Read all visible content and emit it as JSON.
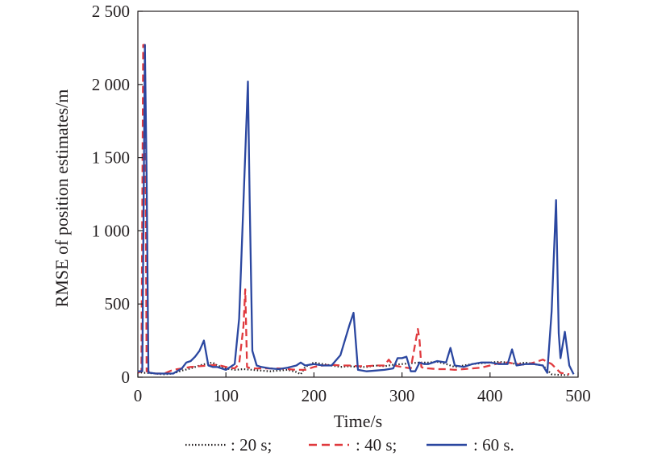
{
  "chart_data": {
    "type": "line",
    "title": "",
    "xlabel": "Time/s",
    "ylabel": "RMSE of position estimates/m",
    "xlim": [
      0,
      500
    ],
    "ylim": [
      0,
      2500
    ],
    "xticks": [
      0,
      100,
      200,
      300,
      400,
      500
    ],
    "yticks": [
      0,
      500,
      1000,
      1500,
      2000,
      2500
    ],
    "xtick_labels": [
      "0",
      "100",
      "200",
      "300",
      "400",
      "500"
    ],
    "ytick_labels": [
      "0",
      "500",
      "1 000",
      "1 500",
      "2 000",
      "2 500"
    ],
    "grid": false,
    "legend_position": "bottom",
    "series": [
      {
        "name": ": 20 s;",
        "color": "#231f20",
        "style": "dotted",
        "x": [
          0,
          5,
          10,
          20,
          30,
          40,
          50,
          60,
          70,
          80,
          85,
          90,
          100,
          110,
          120,
          130,
          140,
          150,
          160,
          170,
          180,
          185,
          190,
          200,
          210,
          220,
          230,
          240,
          250,
          260,
          270,
          280,
          290,
          300,
          310,
          320,
          330,
          340,
          350,
          360,
          370,
          380,
          390,
          400,
          410,
          420,
          430,
          440,
          450,
          460,
          470,
          480,
          490
        ],
        "y": [
          40,
          30,
          30,
          25,
          20,
          25,
          45,
          60,
          80,
          95,
          100,
          80,
          60,
          50,
          55,
          50,
          45,
          40,
          45,
          50,
          35,
          20,
          70,
          100,
          90,
          80,
          70,
          75,
          70,
          70,
          80,
          75,
          85,
          90,
          95,
          100,
          100,
          105,
          90,
          70,
          80,
          90,
          95,
          100,
          105,
          100,
          90,
          100,
          90,
          80,
          20,
          15,
          15
        ]
      },
      {
        "name": ": 40 s;",
        "color": "#e03a3e",
        "style": "dashed",
        "x": [
          0,
          4,
          6,
          8,
          10,
          15,
          20,
          30,
          40,
          50,
          60,
          70,
          80,
          90,
          100,
          110,
          115,
          120,
          122,
          124,
          126,
          130,
          140,
          150,
          160,
          170,
          180,
          190,
          200,
          210,
          220,
          230,
          240,
          250,
          260,
          270,
          280,
          285,
          290,
          300,
          310,
          318,
          320,
          322,
          325,
          330,
          340,
          350,
          360,
          370,
          380,
          390,
          400,
          410,
          420,
          430,
          440,
          450,
          460,
          470,
          480,
          490
        ],
        "y": [
          30,
          40,
          2270,
          2270,
          40,
          30,
          25,
          25,
          50,
          60,
          70,
          75,
          80,
          85,
          70,
          60,
          90,
          350,
          600,
          70,
          65,
          60,
          60,
          60,
          60,
          55,
          50,
          50,
          70,
          80,
          85,
          80,
          80,
          75,
          75,
          80,
          80,
          120,
          80,
          70,
          60,
          330,
          250,
          70,
          60,
          60,
          55,
          55,
          50,
          55,
          60,
          65,
          80,
          95,
          100,
          90,
          85,
          100,
          120,
          90,
          30,
          20
        ]
      },
      {
        "name": ": 60 s.",
        "color": "#2b47a0",
        "style": "solid",
        "x": [
          0,
          5,
          8,
          10,
          12,
          15,
          20,
          30,
          40,
          50,
          55,
          60,
          65,
          70,
          75,
          80,
          85,
          90,
          100,
          110,
          115,
          120,
          125,
          127,
          130,
          135,
          140,
          150,
          160,
          170,
          180,
          185,
          190,
          200,
          210,
          220,
          230,
          240,
          245,
          250,
          260,
          270,
          280,
          290,
          295,
          300,
          305,
          310,
          315,
          320,
          325,
          330,
          340,
          350,
          355,
          360,
          370,
          380,
          390,
          400,
          410,
          420,
          425,
          430,
          440,
          450,
          460,
          465,
          470,
          475,
          478,
          480,
          485,
          490,
          495
        ],
        "y": [
          40,
          40,
          2270,
          1350,
          30,
          30,
          25,
          25,
          25,
          60,
          100,
          110,
          140,
          180,
          250,
          80,
          70,
          70,
          50,
          90,
          400,
          1200,
          2020,
          1200,
          180,
          80,
          70,
          60,
          55,
          65,
          80,
          100,
          80,
          90,
          80,
          80,
          150,
          350,
          440,
          50,
          40,
          45,
          50,
          60,
          130,
          130,
          140,
          40,
          40,
          100,
          90,
          90,
          110,
          100,
          200,
          80,
          70,
          90,
          100,
          100,
          90,
          90,
          190,
          80,
          90,
          90,
          80,
          30,
          450,
          1210,
          300,
          130,
          310,
          80,
          20
        ]
      }
    ]
  }
}
